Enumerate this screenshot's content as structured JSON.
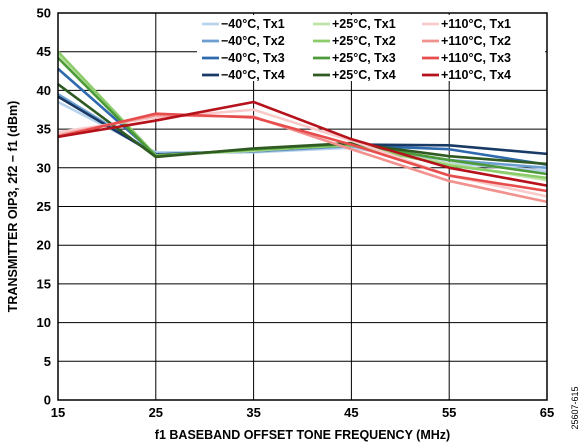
{
  "chart_data": {
    "type": "line",
    "xlabel": "f1 BASEBAND OFFSET TONE FREQUENCY (MHz)",
    "ylabel": "TRANSMITTER OIP3, 2f2 − f1 (dBm)",
    "x": [
      15,
      25,
      35,
      45,
      55,
      65
    ],
    "xlim": [
      15,
      65
    ],
    "ylim": [
      0,
      50
    ],
    "xticks": [
      "15",
      "25",
      "35",
      "45",
      "55",
      "65"
    ],
    "yticks": [
      "0",
      "5",
      "10",
      "15",
      "20",
      "25",
      "30",
      "35",
      "40",
      "45",
      "50"
    ],
    "grid": true,
    "legend_position": "top-right",
    "figure_id": "25607-615",
    "series": [
      {
        "name": "−40°C, Tx1",
        "color": "#b9d3ec",
        "values": [
          38.5,
          32.0,
          32.0,
          32.6,
          30.6,
          29.6
        ]
      },
      {
        "name": "−40°C, Tx2",
        "color": "#6e9fd1",
        "values": [
          39.5,
          31.8,
          32.1,
          32.8,
          31.0,
          30.0
        ]
      },
      {
        "name": "−40°C, Tx3",
        "color": "#2e6aad",
        "values": [
          42.8,
          31.7,
          32.2,
          32.9,
          32.4,
          30.4
        ]
      },
      {
        "name": "−40°C, Tx4",
        "color": "#1a3a66",
        "values": [
          39.2,
          31.7,
          32.2,
          33.0,
          32.9,
          31.8
        ]
      },
      {
        "name": "+25°C, Tx1",
        "color": "#bfe3a6",
        "values": [
          44.5,
          31.6,
          32.2,
          33.0,
          30.5,
          28.4
        ]
      },
      {
        "name": "+25°C, Tx2",
        "color": "#8ccc6a",
        "values": [
          45.0,
          31.6,
          32.3,
          32.9,
          30.3,
          28.7
        ]
      },
      {
        "name": "+25°C, Tx3",
        "color": "#4c9a3a",
        "values": [
          44.2,
          31.5,
          32.4,
          33.1,
          31.0,
          29.2
        ]
      },
      {
        "name": "+25°C, Tx4",
        "color": "#2f5a22",
        "values": [
          40.8,
          31.4,
          32.5,
          33.2,
          31.5,
          30.5
        ]
      },
      {
        "name": "+110°C, Tx1",
        "color": "#f9cbcb",
        "values": [
          34.6,
          36.5,
          37.5,
          33.5,
          29.0,
          26.3
        ]
      },
      {
        "name": "+110°C, Tx2",
        "color": "#f2928f",
        "values": [
          34.2,
          36.8,
          36.6,
          32.4,
          28.3,
          25.6
        ]
      },
      {
        "name": "+110°C, Tx3",
        "color": "#e84d4d",
        "values": [
          34.0,
          37.0,
          36.5,
          33.0,
          29.0,
          27.0
        ]
      },
      {
        "name": "+110°C, Tx4",
        "color": "#b5121b",
        "values": [
          34.0,
          36.1,
          38.5,
          33.7,
          30.0,
          27.7
        ]
      }
    ]
  }
}
